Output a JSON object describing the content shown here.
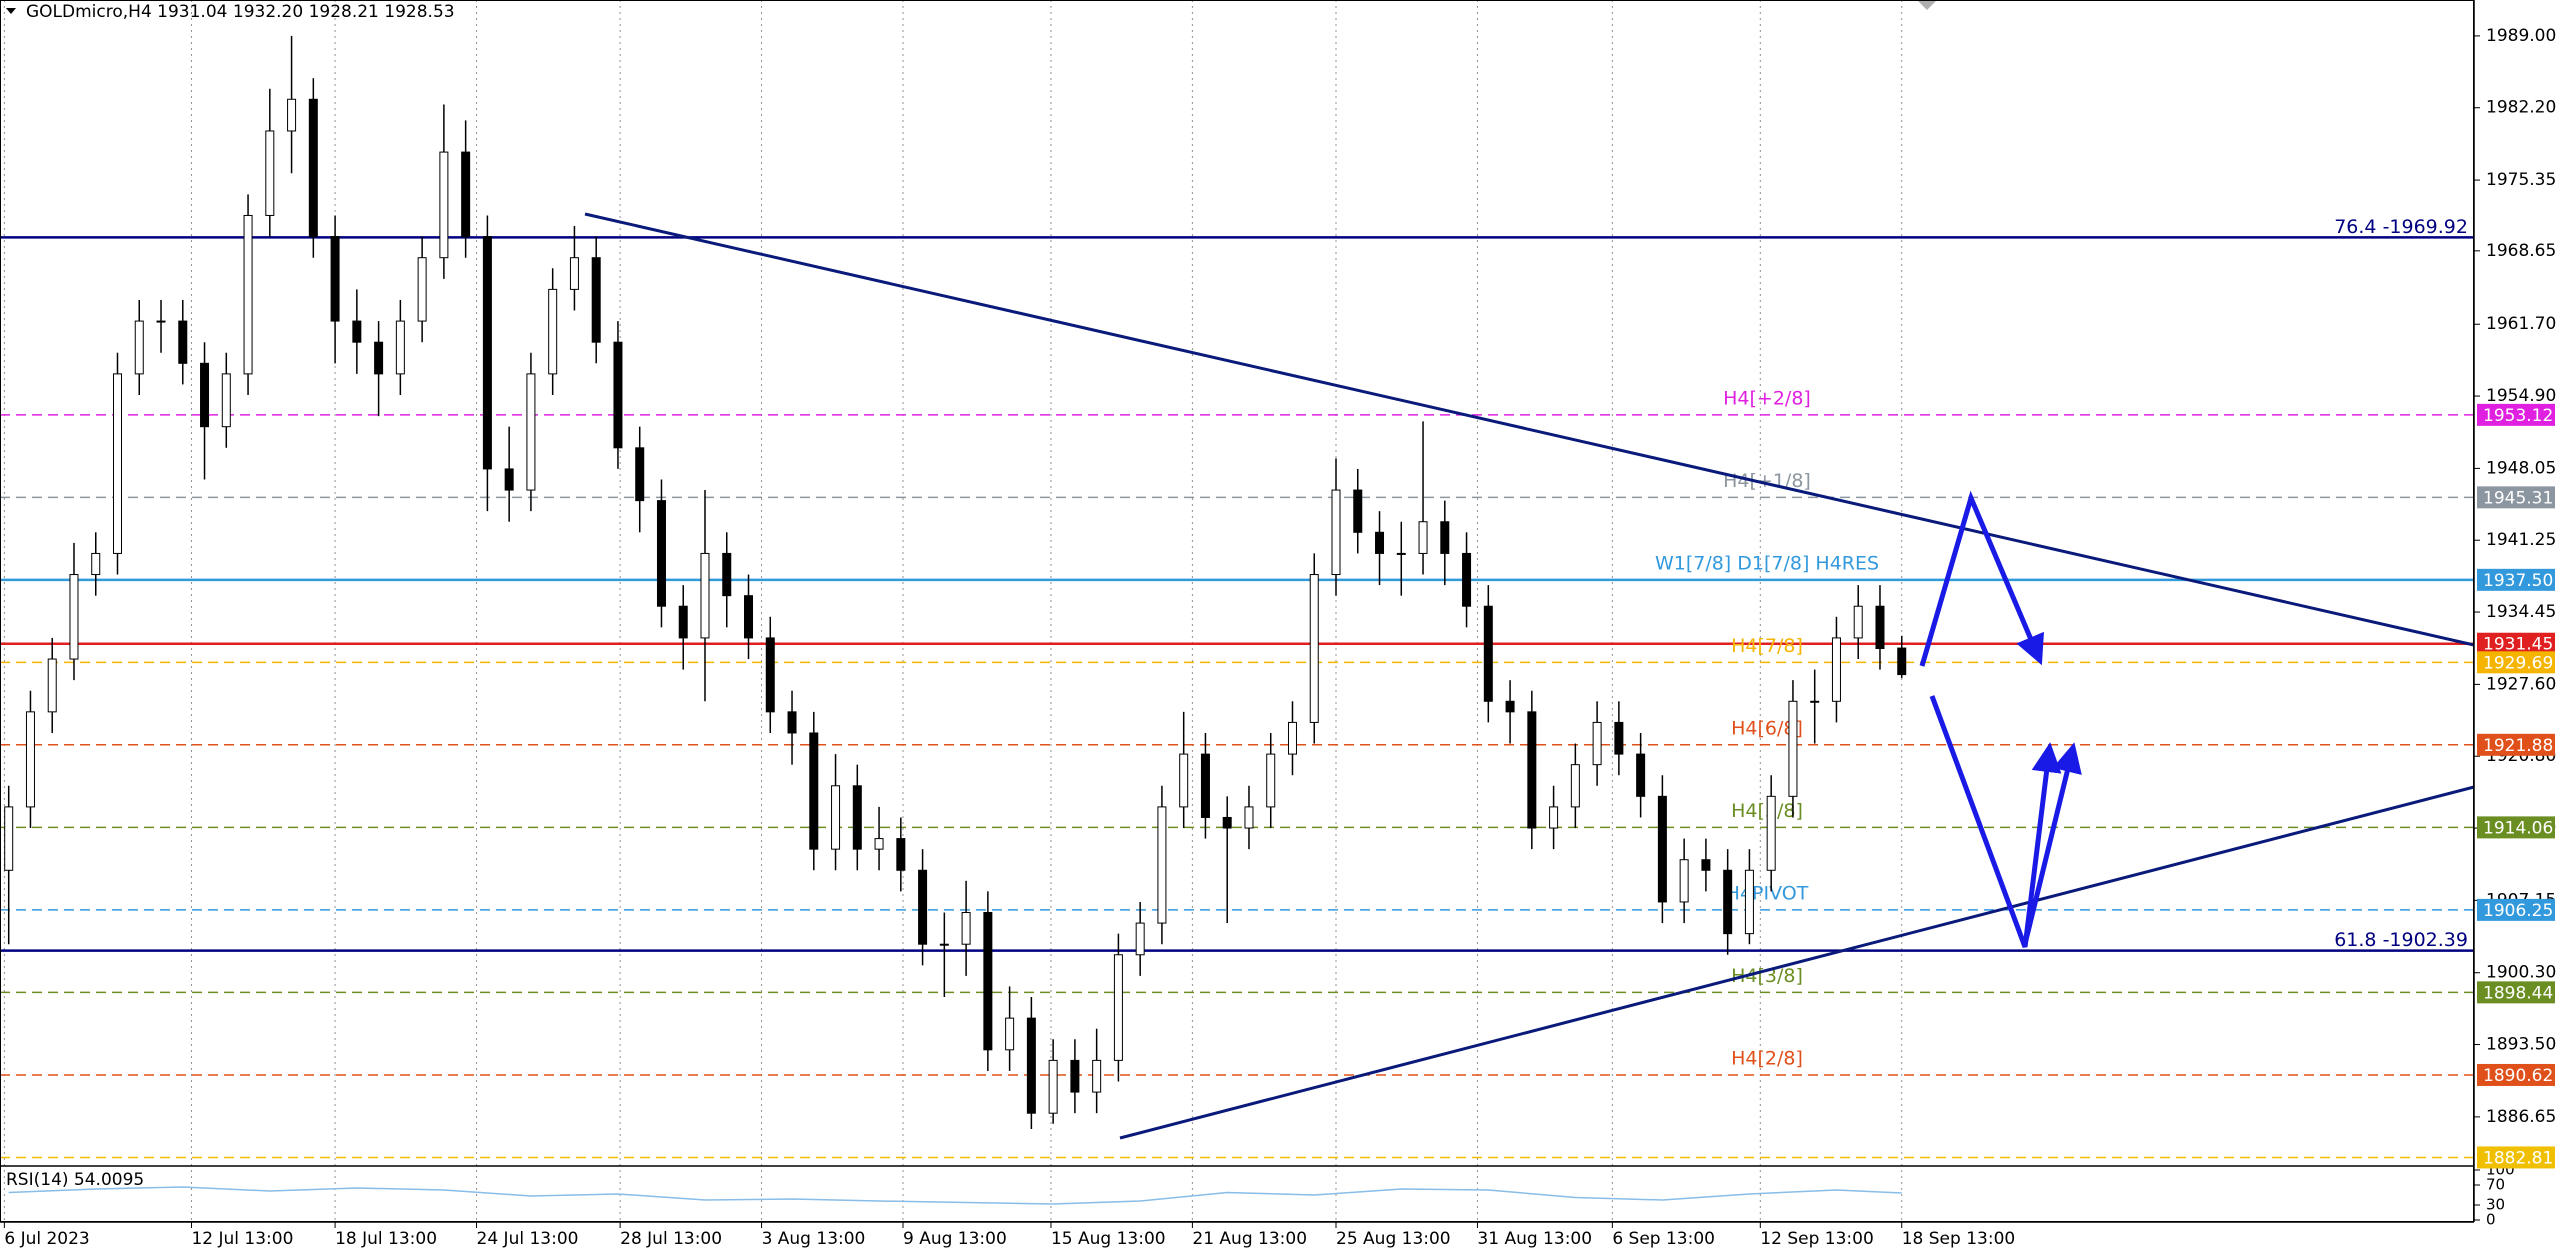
{
  "chart_data": {
    "type": "candlestick",
    "title": "GOLDmicro,H4  1931.04 1932.20 1928.21 1928.53",
    "open": [
      1910,
      1916,
      1925,
      1930,
      1938,
      1940,
      1957,
      1962,
      1962,
      1958,
      1952,
      1957,
      1972,
      1980,
      1983,
      1970,
      1962,
      1960,
      1957,
      1962,
      1968,
      1978,
      1970,
      1948,
      1946,
      1957,
      1965,
      1968,
      1960,
      1950,
      1945,
      1935,
      1932,
      1940,
      1936,
      1932,
      1925,
      1923,
      1912,
      1918,
      1912,
      1913,
      1910,
      1903,
      1903,
      1906,
      1893,
      1896,
      1887,
      1892,
      1889,
      1892,
      1902,
      1905,
      1916,
      1921,
      1915,
      1914,
      1916,
      1921,
      1924,
      1938,
      1946,
      1942,
      1940,
      1940,
      1943,
      1940,
      1935,
      1926,
      1925,
      1914,
      1916,
      1920,
      1924,
      1921,
      1917,
      1907,
      1911,
      1910,
      1904,
      1910,
      1917,
      1926,
      1926,
      1932,
      1935,
      1931.04
    ],
    "high": [
      1918,
      1927,
      1932,
      1941,
      1942,
      1959,
      1964,
      1964,
      1964,
      1960,
      1959,
      1974,
      1984,
      1989,
      1985,
      1972,
      1965,
      1962,
      1964,
      1970,
      1982.5,
      1981,
      1972,
      1952,
      1959,
      1967,
      1971,
      1970,
      1962,
      1952,
      1947,
      1937,
      1946,
      1942,
      1938,
      1934,
      1927,
      1925,
      1921,
      1920,
      1916,
      1915,
      1912,
      1906,
      1909,
      1908,
      1899,
      1898,
      1894,
      1894,
      1895,
      1904,
      1907,
      1918,
      1925,
      1923,
      1917,
      1918,
      1923,
      1926,
      1940,
      1949,
      1948,
      1944,
      1943,
      1952.5,
      1945,
      1942,
      1937,
      1928,
      1927,
      1918,
      1922,
      1926,
      1926,
      1923,
      1919,
      1913,
      1913,
      1912,
      1912,
      1919,
      1928,
      1929,
      1934,
      1937,
      1937,
      1932.2
    ],
    "low": [
      1903,
      1914,
      1923,
      1928,
      1936,
      1938,
      1955,
      1959,
      1956,
      1947,
      1950,
      1955,
      1970,
      1976,
      1968,
      1958,
      1957,
      1953,
      1955,
      1960,
      1966,
      1968,
      1944,
      1943,
      1944,
      1955,
      1963,
      1958,
      1948,
      1942,
      1933,
      1929,
      1926,
      1933,
      1930,
      1923,
      1920,
      1910,
      1910,
      1910,
      1910,
      1908,
      1901,
      1898,
      1900,
      1891,
      1891,
      1885.5,
      1886,
      1887,
      1887,
      1890,
      1900,
      1903,
      1914,
      1913,
      1905,
      1912,
      1914,
      1919,
      1922,
      1936,
      1940,
      1937,
      1936,
      1938,
      1937,
      1933,
      1924,
      1922,
      1912,
      1912,
      1914,
      1918,
      1919,
      1915,
      1905,
      1905,
      1908,
      1902,
      1903,
      1908,
      1915,
      1922,
      1924,
      1930,
      1929,
      1928.21
    ],
    "close": [
      1916,
      1925,
      1930,
      1938,
      1940,
      1957,
      1962,
      1962,
      1958,
      1952,
      1957,
      1972,
      1980,
      1983,
      1970,
      1962,
      1960,
      1957,
      1962,
      1968,
      1978,
      1970,
      1948,
      1946,
      1957,
      1965,
      1968,
      1960,
      1950,
      1945,
      1935,
      1932,
      1940,
      1936,
      1932,
      1925,
      1923,
      1912,
      1918,
      1912,
      1913,
      1910,
      1903,
      1903,
      1906,
      1893,
      1896,
      1887,
      1892,
      1889,
      1892,
      1902,
      1905,
      1916,
      1921,
      1915,
      1914,
      1916,
      1921,
      1924,
      1938,
      1946,
      1942,
      1940,
      1940,
      1943,
      1940,
      1935,
      1926,
      1925,
      1914,
      1916,
      1920,
      1924,
      1921,
      1917,
      1907,
      1911,
      1910,
      1904,
      1910,
      1917,
      1926,
      1926,
      1932,
      1935,
      1931,
      1928.53
    ],
    "color_up": "#ffffff",
    "color_down": "#000000",
    "xlim": [
      -0.4,
      113.3
    ],
    "xticks": [
      {
        "value": -0.2,
        "label": "6 Jul 2023"
      },
      {
        "value": 8.4,
        "label": "12 Jul 13:00"
      },
      {
        "value": 15,
        "label": "18 Jul 13:00"
      },
      {
        "value": 21.5,
        "label": "24 Jul 13:00"
      },
      {
        "value": 28.1,
        "label": "28 Jul 13:00"
      },
      {
        "value": 34.6,
        "label": "3 Aug 13:00"
      },
      {
        "value": 41.1,
        "label": "9 Aug 13:00"
      },
      {
        "value": 47.9,
        "label": "15 Aug 13:00"
      },
      {
        "value": 54.4,
        "label": "21 Aug 13:00"
      },
      {
        "value": 61,
        "label": "25 Aug 13:00"
      },
      {
        "value": 67.5,
        "label": "31 Aug 13:00"
      },
      {
        "value": 73.7,
        "label": "6 Sep 13:00"
      },
      {
        "value": 80.5,
        "label": "12 Sep 13:00"
      },
      {
        "value": 87,
        "label": "18 Sep 13:00"
      }
    ],
    "ylim": [
      1882.0,
      1992.4
    ],
    "yticks": [
      {
        "value": 1989,
        "label": "1989.00"
      },
      {
        "value": 1982.2,
        "label": "1982.20"
      },
      {
        "value": 1975.35,
        "label": "1975.35"
      },
      {
        "value": 1968.65,
        "label": "1968.65"
      },
      {
        "value": 1961.7,
        "label": "1961.70"
      },
      {
        "value": 1954.9,
        "label": "1954.90"
      },
      {
        "value": 1948.05,
        "label": "1948.05"
      },
      {
        "value": 1941.25,
        "label": "1941.25"
      },
      {
        "value": 1934.45,
        "label": "1934.45"
      },
      {
        "value": 1927.6,
        "label": "1927.60"
      },
      {
        "value": 1920.8,
        "label": "1920.80"
      },
      {
        "value": 1914,
        "label": "1914.00"
      },
      {
        "value": 1907.15,
        "label": "1907.15"
      },
      {
        "value": 1900.3,
        "label": "1900.30"
      },
      {
        "value": 1893.5,
        "label": "1893.50"
      },
      {
        "value": 1886.65,
        "label": "1886.65"
      }
    ],
    "grid": true,
    "levels": [
      {
        "value": 1969.92,
        "name": "76.4 -1969.92",
        "color": "#000080",
        "dashed": false
      },
      {
        "value": 1953.12,
        "name": "H4[+2/8]",
        "box": "1953.12",
        "color": "#e020e0",
        "dashed": true
      },
      {
        "value": 1945.31,
        "name": "H4[+1/8]",
        "box": "1945.31",
        "color": "#8c96a0",
        "dashed": true
      },
      {
        "value": 1937.5,
        "name": "W1[7/8] D1[7/8] H4RES",
        "box": "1937.50",
        "color": "#3399dd",
        "dashed": false
      },
      {
        "value": 1931.45,
        "box": "1931.45",
        "color": "#e02020",
        "dashed": false
      },
      {
        "value": 1929.69,
        "name": "H4[7/8]",
        "box": "1929.69",
        "color": "#f5b400",
        "dashed": true
      },
      {
        "value": 1921.88,
        "name": "H4[6/8]",
        "box": "1921.88",
        "color": "#e0501a",
        "dashed": true
      },
      {
        "value": 1914.06,
        "name": "H4[5/8]",
        "box": "1914.06",
        "color": "#6b8e23",
        "dashed": true
      },
      {
        "value": 1906.25,
        "name": "H4PIVOT",
        "box": "1906.25",
        "color": "#3399dd",
        "dashed": true
      },
      {
        "value": 1902.39,
        "name": "61.8 -1902.39",
        "color": "#000080",
        "dashed": false
      },
      {
        "value": 1898.44,
        "name": "H4[3/8]",
        "box": "1898.44",
        "color": "#6b8e23",
        "dashed": true
      },
      {
        "value": 1890.62,
        "name": "H4[2/8]",
        "box": "1890.62",
        "color": "#e0501a",
        "dashed": true
      },
      {
        "value": 1882.81,
        "box": "1882.81",
        "color": "#f0c000",
        "dashed": true
      }
    ],
    "rsi": {
      "title": "RSI(14) 54.0095",
      "x": [
        0,
        4,
        8,
        12,
        16,
        20,
        24,
        28,
        32,
        36,
        40,
        44,
        48,
        52,
        56,
        60,
        64,
        68,
        72,
        76,
        80,
        84,
        87
      ],
      "values": [
        55,
        62,
        66,
        58,
        64,
        60,
        48,
        52,
        40,
        42,
        38,
        35,
        32,
        38,
        55,
        50,
        62,
        60,
        45,
        40,
        52,
        60,
        54
      ],
      "color": "#87bde8",
      "ylim": [
        0,
        100
      ],
      "yticks": [
        0,
        30,
        70,
        100
      ]
    }
  }
}
